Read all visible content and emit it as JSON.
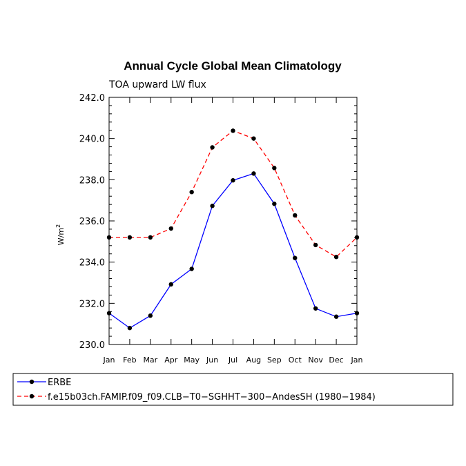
{
  "chart_data": {
    "type": "line",
    "title": "Annual Cycle Global Mean Climatology",
    "subtitle": "TOA upward LW flux",
    "ylabel_main": "W/m",
    "ylabel_sup": "2",
    "xlabel": "",
    "ylim": [
      230.0,
      242.0
    ],
    "yticks": [
      "230.0",
      "232.0",
      "234.0",
      "236.0",
      "238.0",
      "240.0",
      "242.0"
    ],
    "categories": [
      "Jan",
      "Feb",
      "Mar",
      "Apr",
      "May",
      "Jun",
      "Jul",
      "Aug",
      "Sep",
      "Oct",
      "Nov",
      "Dec",
      "Jan"
    ],
    "legend_position": "bottom",
    "grid": false,
    "series": [
      {
        "name": "ERBE",
        "color": "#0000ff",
        "dash": "solid",
        "values": [
          231.52,
          230.8,
          231.4,
          232.92,
          233.67,
          236.73,
          237.97,
          238.3,
          236.83,
          234.2,
          231.75,
          231.35,
          231.52
        ]
      },
      {
        "name": "f.e15b03ch.FAMIP.f09_f09.CLB−T0−SGHHT−300−AndesSH (1980−1984)",
        "color": "#ff0000",
        "dash": "dashed",
        "values": [
          235.2,
          235.2,
          235.2,
          235.63,
          237.4,
          239.57,
          240.38,
          240.0,
          238.57,
          236.27,
          234.83,
          234.25,
          235.2
        ]
      }
    ]
  }
}
